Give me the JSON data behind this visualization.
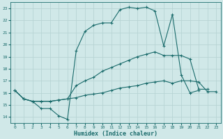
{
  "bg_color": "#d0e8e8",
  "grid_color": "#b8d4d4",
  "line_color": "#1a6b6b",
  "xlabel": "Humidex (Indice chaleur)",
  "xlim": [
    -0.5,
    23.5
  ],
  "ylim": [
    13.5,
    23.5
  ],
  "yticks": [
    14,
    15,
    16,
    17,
    18,
    19,
    20,
    21,
    22,
    23
  ],
  "xticks": [
    0,
    1,
    2,
    3,
    4,
    5,
    6,
    7,
    8,
    9,
    10,
    11,
    12,
    13,
    14,
    15,
    16,
    17,
    18,
    19,
    20,
    21,
    22,
    23
  ],
  "line1_x": [
    0,
    1,
    2,
    3,
    4,
    5,
    6,
    7,
    8,
    9,
    10,
    11,
    12,
    13,
    14,
    15,
    16,
    17,
    18,
    19,
    20,
    21
  ],
  "line1_y": [
    16.2,
    15.5,
    15.3,
    14.7,
    14.7,
    14.1,
    13.8,
    19.5,
    21.1,
    21.6,
    21.8,
    21.8,
    22.9,
    23.1,
    23.0,
    23.1,
    22.8,
    19.9,
    22.5,
    17.5,
    16.0,
    16.2
  ],
  "line2_x": [
    0,
    1,
    2,
    3,
    4,
    5,
    6,
    7,
    8,
    9,
    10,
    11,
    12,
    13,
    14,
    15,
    16,
    17,
    18,
    19,
    20,
    21,
    22
  ],
  "line2_y": [
    16.2,
    15.5,
    15.3,
    15.3,
    15.3,
    15.4,
    15.5,
    16.6,
    17.0,
    17.3,
    17.8,
    18.1,
    18.4,
    18.7,
    19.0,
    19.2,
    19.4,
    19.1,
    19.1,
    19.1,
    18.8,
    16.3,
    16.3
  ],
  "line3_x": [
    0,
    1,
    2,
    3,
    4,
    5,
    6,
    7,
    8,
    9,
    10,
    11,
    12,
    13,
    14,
    15,
    16,
    17,
    18,
    19,
    20,
    21,
    22,
    23
  ],
  "line3_y": [
    16.2,
    15.5,
    15.3,
    15.3,
    15.3,
    15.4,
    15.5,
    15.6,
    15.8,
    15.9,
    16.0,
    16.2,
    16.4,
    16.5,
    16.6,
    16.8,
    16.9,
    17.0,
    16.8,
    17.0,
    17.0,
    16.9,
    16.1,
    16.1
  ]
}
